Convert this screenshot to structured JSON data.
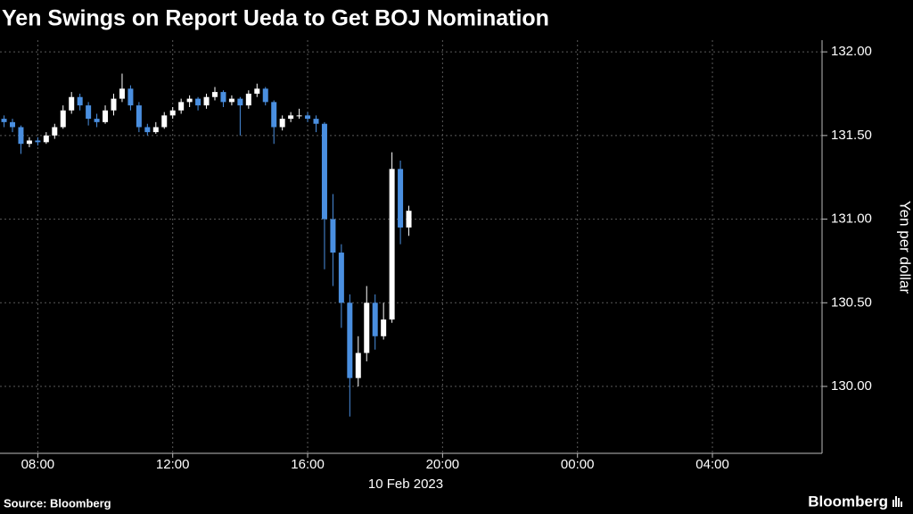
{
  "chart_data": {
    "type": "candlestick",
    "title": "Yen Swings on Report Ueda to Get BOJ Nomination",
    "y_label": "Yen per dollar",
    "x_label": "10 Feb 2023",
    "source": "Source: Bloomberg",
    "brand": "Bloomberg",
    "up_color": "#ffffff",
    "down_color": "#4a8fe0",
    "grid": true,
    "xlim": [
      6.88,
      31.25
    ],
    "xticks": [
      {
        "value": 8,
        "label": "08:00"
      },
      {
        "value": 12,
        "label": "12:00"
      },
      {
        "value": 16,
        "label": "16:00"
      },
      {
        "value": 20,
        "label": "20:00"
      },
      {
        "value": 24,
        "label": "00:00"
      },
      {
        "value": 28,
        "label": "04:00"
      }
    ],
    "ylim": [
      129.6,
      132.07
    ],
    "yticks": [
      {
        "value": 130,
        "label": "130.00"
      },
      {
        "value": 130.5,
        "label": "130.50"
      },
      {
        "value": 131,
        "label": "131.00"
      },
      {
        "value": 131.5,
        "label": "131.50"
      },
      {
        "value": 132,
        "label": "132.00"
      }
    ],
    "x": [
      7,
      7.25,
      7.5,
      7.75,
      8,
      8.25,
      8.5,
      8.75,
      9,
      9.25,
      9.5,
      9.75,
      10,
      10.25,
      10.5,
      10.75,
      11,
      11.25,
      11.5,
      11.75,
      12,
      12.25,
      12.5,
      12.75,
      13,
      13.25,
      13.5,
      13.75,
      14,
      14.25,
      14.5,
      14.75,
      15,
      15.25,
      15.5,
      15.75,
      16,
      16.25,
      16.5,
      16.75,
      17,
      17.25,
      17.5,
      17.75,
      18,
      18.25,
      18.5,
      18.75,
      19
    ],
    "open": [
      131.6,
      131.58,
      131.55,
      131.45,
      131.47,
      131.46,
      131.5,
      131.55,
      131.65,
      131.73,
      131.68,
      131.6,
      131.58,
      131.65,
      131.72,
      131.78,
      131.68,
      131.55,
      131.52,
      131.55,
      131.62,
      131.65,
      131.7,
      131.72,
      131.68,
      131.73,
      131.76,
      131.7,
      131.72,
      131.68,
      131.75,
      131.78,
      131.7,
      131.55,
      131.6,
      131.62,
      131.62,
      131.6,
      131.57,
      131.0,
      130.8,
      130.5,
      130.05,
      130.2,
      130.5,
      130.3,
      130.4,
      131.3,
      130.95
    ],
    "high": [
      131.62,
      131.6,
      131.56,
      131.49,
      131.49,
      131.52,
      131.57,
      131.68,
      131.76,
      131.75,
      131.7,
      131.63,
      131.68,
      131.75,
      131.87,
      131.8,
      131.7,
      131.57,
      131.58,
      131.64,
      131.67,
      131.72,
      131.74,
      131.73,
      131.75,
      131.79,
      131.77,
      131.74,
      131.73,
      131.77,
      131.81,
      131.79,
      131.71,
      131.62,
      131.64,
      131.66,
      131.64,
      131.62,
      131.58,
      131.15,
      130.85,
      130.55,
      130.3,
      130.6,
      130.55,
      130.5,
      131.4,
      131.35,
      131.08
    ],
    "low": [
      131.55,
      131.52,
      131.39,
      131.43,
      131.44,
      131.45,
      131.48,
      131.54,
      131.63,
      131.65,
      131.56,
      131.55,
      131.57,
      131.62,
      131.7,
      131.65,
      131.52,
      131.5,
      131.51,
      131.54,
      131.6,
      131.63,
      131.67,
      131.65,
      131.66,
      131.71,
      131.67,
      131.68,
      131.5,
      131.66,
      131.73,
      131.68,
      131.45,
      131.53,
      131.58,
      131.6,
      131.58,
      131.52,
      130.7,
      130.6,
      130.35,
      129.82,
      130.0,
      130.15,
      130.22,
      130.28,
      130.38,
      130.85,
      130.9
    ],
    "close": [
      131.58,
      131.55,
      131.45,
      131.47,
      131.46,
      131.5,
      131.55,
      131.65,
      131.73,
      131.68,
      131.6,
      131.58,
      131.65,
      131.72,
      131.78,
      131.68,
      131.55,
      131.52,
      131.55,
      131.62,
      131.65,
      131.7,
      131.72,
      131.68,
      131.73,
      131.76,
      131.7,
      131.72,
      131.68,
      131.75,
      131.78,
      131.7,
      131.55,
      131.6,
      131.62,
      131.62,
      131.6,
      131.57,
      131.0,
      130.8,
      130.5,
      130.05,
      130.2,
      130.5,
      130.3,
      130.4,
      131.3,
      130.95,
      131.05
    ]
  }
}
